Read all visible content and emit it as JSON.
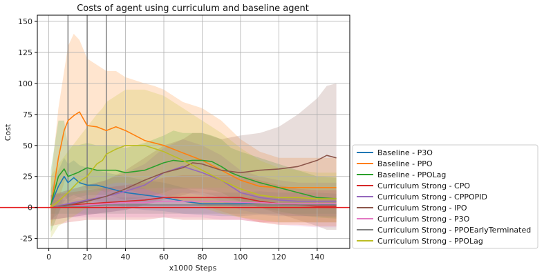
{
  "chart_data": {
    "type": "line",
    "title": "Costs of agent using curriculum and baseline agent",
    "xlabel": "x1000 Steps",
    "ylabel": "Cost",
    "xlim": [
      -6,
      157
    ],
    "ylim": [
      -33,
      155
    ],
    "xticks": [
      0,
      20,
      40,
      60,
      80,
      100,
      120,
      140
    ],
    "yticks": [
      -25,
      0,
      25,
      50,
      75,
      100,
      125,
      150
    ],
    "grid": true,
    "legend_position": "right",
    "vertical_markers": [
      10,
      20,
      30
    ],
    "horizontal_reference": 0,
    "series": [
      {
        "name": "Baseline - P3O",
        "color": "#1f77b4",
        "x": [
          1,
          5,
          8,
          10,
          13,
          16,
          20,
          25,
          30,
          40,
          50,
          60,
          70,
          80,
          90,
          100,
          110,
          120,
          130,
          140,
          150
        ],
        "y": [
          2,
          17,
          25,
          20,
          24,
          20,
          18,
          18,
          16,
          12,
          10,
          8,
          5,
          3,
          3,
          3,
          4,
          3,
          3,
          3,
          2
        ],
        "lower": [
          -10,
          -5,
          5,
          8,
          10,
          8,
          6,
          5,
          4,
          0,
          -2,
          -3,
          -5,
          -6,
          -7,
          -7,
          -6,
          -7,
          -7,
          -7,
          -8
        ],
        "upper": [
          15,
          30,
          40,
          35,
          38,
          34,
          32,
          30,
          28,
          25,
          22,
          20,
          16,
          12,
          12,
          12,
          13,
          12,
          12,
          12,
          11
        ]
      },
      {
        "name": "Baseline - PPO",
        "color": "#ff7f0e",
        "x": [
          1,
          5,
          8,
          10,
          13,
          16,
          20,
          25,
          30,
          35,
          40,
          50,
          55,
          60,
          70,
          80,
          90,
          100,
          110,
          120,
          130,
          140,
          150
        ],
        "y": [
          0,
          40,
          62,
          70,
          74,
          77,
          66,
          65,
          62,
          65,
          62,
          54,
          52,
          50,
          44,
          38,
          30,
          22,
          17,
          16,
          16,
          16,
          16
        ],
        "lower": [
          -15,
          5,
          20,
          30,
          25,
          20,
          15,
          15,
          12,
          15,
          15,
          10,
          10,
          10,
          5,
          2,
          -3,
          -8,
          -12,
          -14,
          -14,
          -15,
          -15
        ],
        "upper": [
          20,
          80,
          110,
          130,
          140,
          135,
          120,
          115,
          110,
          110,
          105,
          100,
          98,
          95,
          85,
          80,
          70,
          55,
          45,
          40,
          40,
          40,
          40
        ]
      },
      {
        "name": "Baseline - PPOLag",
        "color": "#2ca02c",
        "x": [
          1,
          5,
          8,
          10,
          15,
          20,
          25,
          30,
          35,
          40,
          50,
          60,
          65,
          70,
          75,
          80,
          85,
          90,
          95,
          100,
          110,
          120,
          130,
          140,
          150
        ],
        "y": [
          2,
          25,
          31,
          25,
          28,
          32,
          30,
          30,
          30,
          28,
          30,
          36,
          38,
          37,
          38,
          38,
          37,
          33,
          28,
          25,
          20,
          16,
          12,
          8,
          7
        ],
        "lower": [
          -20,
          -5,
          10,
          5,
          8,
          10,
          10,
          10,
          8,
          6,
          8,
          12,
          15,
          15,
          15,
          15,
          14,
          12,
          8,
          5,
          0,
          -3,
          -6,
          -8,
          -9
        ],
        "upper": [
          30,
          70,
          70,
          50,
          50,
          52,
          50,
          50,
          50,
          48,
          52,
          58,
          62,
          60,
          60,
          60,
          58,
          55,
          48,
          45,
          40,
          35,
          30,
          25,
          24
        ]
      },
      {
        "name": "Curriculum Strong - CPO",
        "color": "#d62728",
        "x": [
          1,
          10,
          20,
          30,
          40,
          50,
          60,
          70,
          80,
          90,
          100,
          110,
          120,
          130,
          140,
          150
        ],
        "y": [
          0,
          2,
          3,
          4,
          5,
          6,
          8,
          8,
          8,
          8,
          8,
          5,
          3,
          2,
          1,
          1
        ],
        "lower": [
          -15,
          -12,
          -10,
          -10,
          -10,
          -10,
          -8,
          -10,
          -10,
          -10,
          -10,
          -12,
          -12,
          -12,
          -12,
          -12
        ],
        "upper": [
          10,
          12,
          14,
          16,
          18,
          20,
          24,
          26,
          26,
          26,
          26,
          22,
          18,
          15,
          14,
          14
        ]
      },
      {
        "name": "Curriculum Strong - CPPOPID",
        "color": "#9467bd",
        "x": [
          1,
          10,
          20,
          30,
          40,
          50,
          60,
          70,
          80,
          90,
          100,
          110,
          120,
          130,
          140,
          150
        ],
        "y": [
          0,
          3,
          6,
          9,
          13,
          18,
          28,
          33,
          28,
          22,
          12,
          8,
          6,
          5,
          5,
          5
        ],
        "lower": [
          -10,
          -8,
          -6,
          -4,
          -2,
          2,
          8,
          12,
          10,
          5,
          -2,
          -5,
          -6,
          -7,
          -7,
          -7
        ],
        "upper": [
          10,
          14,
          18,
          22,
          28,
          35,
          48,
          55,
          50,
          42,
          30,
          25,
          22,
          20,
          20,
          20
        ]
      },
      {
        "name": "Curriculum Strong - IPO",
        "color": "#8c564b",
        "x": [
          1,
          10,
          20,
          30,
          40,
          50,
          60,
          70,
          75,
          80,
          90,
          100,
          110,
          120,
          130,
          140,
          145,
          150
        ],
        "y": [
          0,
          2,
          5,
          9,
          15,
          22,
          28,
          32,
          36,
          35,
          30,
          28,
          30,
          31,
          33,
          38,
          42,
          40
        ],
        "lower": [
          -10,
          -8,
          -6,
          -4,
          -2,
          2,
          6,
          10,
          12,
          12,
          8,
          5,
          0,
          -5,
          -10,
          -15,
          -18,
          -18
        ],
        "upper": [
          10,
          14,
          18,
          22,
          30,
          40,
          50,
          55,
          60,
          60,
          55,
          58,
          60,
          65,
          75,
          88,
          98,
          100
        ]
      },
      {
        "name": "Curriculum Strong - P3O",
        "color": "#e377c2",
        "x": [
          1,
          10,
          20,
          30,
          40,
          50,
          60,
          70,
          80,
          90,
          100,
          110,
          120,
          130,
          140,
          150
        ],
        "y": [
          0,
          1,
          2,
          3,
          4,
          4,
          5,
          5,
          5,
          5,
          4,
          4,
          3,
          3,
          3,
          3
        ],
        "lower": [
          -10,
          -8,
          -8,
          -8,
          -8,
          -8,
          -8,
          -8,
          -8,
          -10,
          -10,
          -12,
          -14,
          -15,
          -16,
          -16
        ],
        "upper": [
          8,
          10,
          12,
          14,
          14,
          15,
          16,
          16,
          16,
          16,
          15,
          15,
          14,
          14,
          14,
          14
        ]
      },
      {
        "name": "Curriculum Strong - PPOEarlyTerminated",
        "color": "#7f7f7f",
        "x": [
          1,
          10,
          20,
          30,
          40,
          50,
          60,
          70,
          80,
          90,
          100,
          110,
          120,
          130,
          140,
          150
        ],
        "y": [
          0,
          1,
          1,
          2,
          2,
          2,
          2,
          2,
          2,
          2,
          2,
          2,
          2,
          2,
          2,
          2
        ],
        "lower": [
          -5,
          -5,
          -5,
          -5,
          -5,
          -5,
          -5,
          -5,
          -5,
          -5,
          -5,
          -5,
          -5,
          -5,
          -5,
          -5
        ],
        "upper": [
          6,
          6,
          7,
          8,
          8,
          8,
          8,
          8,
          8,
          8,
          8,
          8,
          8,
          8,
          8,
          8
        ]
      },
      {
        "name": "Curriculum Strong - PPOLag",
        "color": "#bcbd22",
        "x": [
          1,
          5,
          10,
          15,
          20,
          25,
          28,
          30,
          35,
          40,
          45,
          50,
          60,
          70,
          80,
          90,
          100,
          110,
          120,
          130,
          140,
          150
        ],
        "y": [
          0,
          5,
          12,
          20,
          25,
          35,
          38,
          43,
          47,
          50,
          50,
          50,
          45,
          38,
          30,
          22,
          15,
          10,
          8,
          8,
          7,
          7
        ],
        "lower": [
          -25,
          -15,
          -10,
          -5,
          0,
          10,
          15,
          18,
          20,
          20,
          18,
          15,
          10,
          5,
          0,
          -5,
          -8,
          -10,
          -12,
          -12,
          -12,
          -12
        ],
        "upper": [
          25,
          35,
          45,
          55,
          65,
          75,
          80,
          85,
          90,
          95,
          95,
          95,
          90,
          80,
          70,
          60,
          48,
          38,
          32,
          30,
          28,
          28
        ]
      }
    ]
  }
}
